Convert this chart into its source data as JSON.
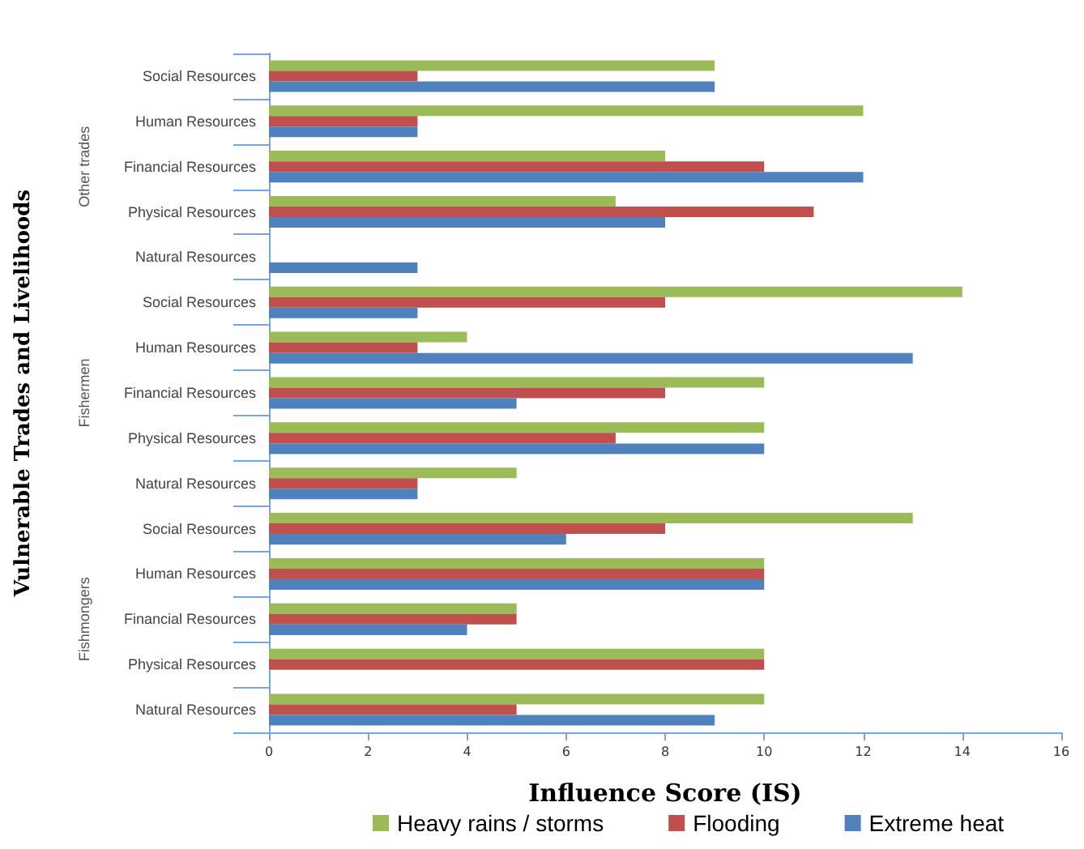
{
  "chart_data": {
    "type": "bar",
    "orientation": "horizontal",
    "xlabel": "Influence Score (IS)",
    "ylabel": "Vulnerable Trades and Livelihoods",
    "categories": [
      "Social Resources",
      "Human Resources",
      "Financial Resources",
      "Physical Resources",
      "Natural Resources",
      "Social Resources",
      "Human Resources",
      "Financial Resources",
      "Physical Resources",
      "Natural Resources",
      "Social Resources",
      "Human Resources",
      "Financial Resources",
      "Physical Resources",
      "Natural Resources"
    ],
    "annotations": [
      "Other trades",
      "Fishermen",
      "Fishmongers"
    ],
    "series": [
      {
        "name": "Heavy rains / storms",
        "color": "#9bbb59",
        "values": [
          9,
          12,
          8,
          7,
          0,
          14,
          4,
          10,
          10,
          5,
          13,
          10,
          5,
          10,
          10
        ]
      },
      {
        "name": "Flooding",
        "color": "#c0504d",
        "values": [
          3,
          3,
          10,
          11,
          0,
          8,
          3,
          8,
          7,
          3,
          8,
          10,
          5,
          10,
          5
        ]
      },
      {
        "name": "Extreme heat",
        "color": "#4f81bd",
        "values": [
          9,
          3,
          12,
          8,
          3,
          3,
          13,
          5,
          10,
          3,
          6,
          10,
          4,
          0,
          9
        ]
      }
    ],
    "xlim": [
      0,
      16
    ],
    "xticks": [
      0,
      2,
      4,
      6,
      8,
      10,
      12,
      14,
      16
    ],
    "grid": false,
    "legend": "bottom"
  }
}
